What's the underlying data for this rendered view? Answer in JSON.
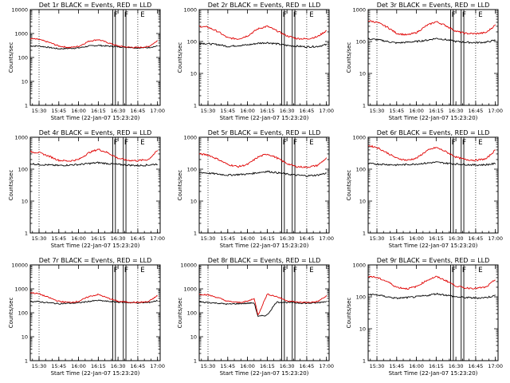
{
  "chart_data": [
    {
      "type": "line",
      "title": "Det 1r BLACK = Events, RED = LLD",
      "xlabel": "Start Time (22-Jan-07 15:23:20)",
      "ylabel": "Counts/sec",
      "ylog": true,
      "ylim": [
        1,
        10000
      ],
      "yticks": [
        "1",
        "10",
        "100",
        "1000",
        "10000"
      ],
      "xticks": [
        "15:30",
        "15:45",
        "16:00",
        "16:15",
        "16:30",
        "16:45",
        "17:00"
      ],
      "markers": {
        "dotted": [
          "15:30",
          "16:45"
        ],
        "solid": [
          "16:26",
          "16:28",
          "16:34",
          "16:36"
        ]
      },
      "flags": [
        "F",
        "F",
        "E"
      ],
      "series": [
        {
          "name": "Events",
          "color": "#000000",
          "x": [
            "15:23",
            "15:30",
            "15:38",
            "15:45",
            "15:53",
            "16:00",
            "16:08",
            "16:15",
            "16:22",
            "16:30",
            "16:37",
            "16:45",
            "16:53",
            "17:00"
          ],
          "y": [
            300,
            300,
            260,
            230,
            240,
            250,
            300,
            320,
            300,
            280,
            270,
            250,
            260,
            300
          ]
        },
        {
          "name": "LLD",
          "color": "#e00000",
          "x": [
            "15:23",
            "15:30",
            "15:38",
            "15:45",
            "15:53",
            "16:00",
            "16:08",
            "16:15",
            "16:22",
            "16:30",
            "16:37",
            "16:45",
            "16:53",
            "17:00"
          ],
          "y": [
            620,
            560,
            420,
            300,
            260,
            290,
            480,
            560,
            420,
            300,
            270,
            260,
            280,
            500
          ]
        }
      ]
    },
    {
      "type": "line",
      "title": "Det 2r BLACK = Events, RED = LLD",
      "xlabel": "Start Time (22-Jan-07 15:23:20)",
      "ylabel": "Counts/sec",
      "ylog": true,
      "ylim": [
        1,
        1000
      ],
      "yticks": [
        "1",
        "10",
        "100",
        "1000"
      ],
      "xticks": [
        "15:30",
        "15:45",
        "16:00",
        "16:15",
        "16:30",
        "16:45",
        "17:00"
      ],
      "markers": {
        "dotted": [
          "15:30",
          "16:45"
        ],
        "solid": [
          "16:26",
          "16:28",
          "16:34",
          "16:36"
        ]
      },
      "flags": [
        "F",
        "F",
        "E"
      ],
      "series": [
        {
          "name": "Events",
          "color": "#000000",
          "x": [
            "15:23",
            "15:30",
            "15:38",
            "15:45",
            "15:53",
            "16:00",
            "16:08",
            "16:15",
            "16:22",
            "16:30",
            "16:37",
            "16:45",
            "16:53",
            "17:00"
          ],
          "y": [
            90,
            85,
            80,
            70,
            75,
            78,
            88,
            92,
            85,
            75,
            72,
            68,
            70,
            80
          ]
        },
        {
          "name": "LLD",
          "color": "#e00000",
          "x": [
            "15:23",
            "15:30",
            "15:38",
            "15:45",
            "15:53",
            "16:00",
            "16:08",
            "16:15",
            "16:22",
            "16:30",
            "16:37",
            "16:45",
            "16:53",
            "17:00"
          ],
          "y": [
            300,
            280,
            200,
            130,
            120,
            150,
            250,
            300,
            220,
            150,
            125,
            120,
            140,
            220
          ]
        }
      ]
    },
    {
      "type": "line",
      "title": "Det 3r BLACK = Events, RED = LLD",
      "xlabel": "Start Time (22-Jan-07 15:23:20)",
      "ylabel": "Counts/sec",
      "ylog": true,
      "ylim": [
        1,
        1000
      ],
      "yticks": [
        "1",
        "10",
        "100",
        "1000"
      ],
      "xticks": [
        "15:30",
        "15:45",
        "16:00",
        "16:15",
        "16:30",
        "16:45",
        "17:00"
      ],
      "markers": {
        "dotted": [
          "15:30",
          "16:45"
        ],
        "solid": [
          "16:26",
          "16:28",
          "16:34",
          "16:36"
        ]
      },
      "flags": [
        "F",
        "F",
        "E"
      ],
      "series": [
        {
          "name": "Events",
          "color": "#000000",
          "x": [
            "15:23",
            "15:30",
            "15:38",
            "15:45",
            "15:53",
            "16:00",
            "16:08",
            "16:15",
            "16:22",
            "16:30",
            "16:37",
            "16:45",
            "16:53",
            "17:00"
          ],
          "y": [
            120,
            115,
            100,
            90,
            95,
            100,
            110,
            125,
            115,
            100,
            95,
            92,
            95,
            110
          ]
        },
        {
          "name": "LLD",
          "color": "#e00000",
          "x": [
            "15:23",
            "15:30",
            "15:38",
            "15:45",
            "15:53",
            "16:00",
            "16:08",
            "16:15",
            "16:22",
            "16:30",
            "16:37",
            "16:45",
            "16:53",
            "17:00"
          ],
          "y": [
            450,
            400,
            280,
            180,
            160,
            190,
            320,
            420,
            320,
            210,
            180,
            175,
            190,
            330
          ]
        }
      ]
    },
    {
      "type": "line",
      "title": "Det 4r BLACK = Events, RED = LLD",
      "xlabel": "Start Time (22-Jan-07 15:23:20)",
      "ylabel": "Counts/sec",
      "ylog": true,
      "ylim": [
        1,
        1000
      ],
      "yticks": [
        "1",
        "10",
        "100",
        "1000"
      ],
      "xticks": [
        "15:30",
        "15:45",
        "16:00",
        "16:15",
        "16:30",
        "16:45",
        "17:00"
      ],
      "markers": {
        "dotted": [
          "15:30",
          "16:45"
        ],
        "solid": [
          "16:26",
          "16:28",
          "16:34",
          "16:36"
        ]
      },
      "flags": [
        "F",
        "F",
        "E"
      ],
      "series": [
        {
          "name": "Events",
          "color": "#000000",
          "x": [
            "15:23",
            "15:30",
            "15:38",
            "15:45",
            "15:53",
            "16:00",
            "16:08",
            "16:15",
            "16:22",
            "16:30",
            "16:37",
            "16:45",
            "16:53",
            "17:00"
          ],
          "y": [
            150,
            140,
            135,
            130,
            135,
            140,
            150,
            160,
            150,
            140,
            135,
            130,
            135,
            145
          ]
        },
        {
          "name": "LLD",
          "color": "#e00000",
          "x": [
            "15:23",
            "15:30",
            "15:38",
            "15:45",
            "15:53",
            "16:00",
            "16:08",
            "16:15",
            "16:22",
            "16:30",
            "16:37",
            "16:45",
            "16:53",
            "17:00"
          ],
          "y": [
            350,
            330,
            250,
            190,
            180,
            200,
            330,
            420,
            330,
            220,
            190,
            185,
            200,
            380
          ]
        }
      ]
    },
    {
      "type": "line",
      "title": "Det 5r BLACK = Events, RED = LLD",
      "xlabel": "Start Time (22-Jan-07 15:23:20)",
      "ylabel": "Counts/sec",
      "ylog": true,
      "ylim": [
        1,
        1000
      ],
      "yticks": [
        "1",
        "10",
        "100",
        "1000"
      ],
      "xticks": [
        "15:30",
        "15:45",
        "16:00",
        "16:15",
        "16:30",
        "16:45",
        "17:00"
      ],
      "markers": {
        "dotted": [
          "15:30",
          "16:45"
        ],
        "solid": [
          "16:26",
          "16:28",
          "16:34",
          "16:36"
        ]
      },
      "flags": [
        "F",
        "F",
        "E"
      ],
      "series": [
        {
          "name": "Events",
          "color": "#000000",
          "x": [
            "15:23",
            "15:30",
            "15:38",
            "15:45",
            "15:53",
            "16:00",
            "16:08",
            "16:15",
            "16:22",
            "16:30",
            "16:37",
            "16:45",
            "16:53",
            "17:00"
          ],
          "y": [
            80,
            75,
            70,
            65,
            68,
            70,
            78,
            85,
            78,
            70,
            65,
            62,
            65,
            75
          ]
        },
        {
          "name": "LLD",
          "color": "#e00000",
          "x": [
            "15:23",
            "15:30",
            "15:38",
            "15:45",
            "15:53",
            "16:00",
            "16:08",
            "16:15",
            "16:22",
            "16:30",
            "16:37",
            "16:45",
            "16:53",
            "17:00"
          ],
          "y": [
            300,
            280,
            200,
            140,
            120,
            140,
            240,
            300,
            230,
            150,
            120,
            115,
            130,
            220
          ]
        }
      ]
    },
    {
      "type": "line",
      "title": "Det 6r BLACK = Events, RED = LLD",
      "xlabel": "Start Time (22-Jan-07 15:23:20)",
      "ylabel": "Counts/sec",
      "ylog": true,
      "ylim": [
        1,
        1000
      ],
      "yticks": [
        "1",
        "10",
        "100",
        "1000"
      ],
      "xticks": [
        "15:30",
        "15:45",
        "16:00",
        "16:15",
        "16:30",
        "16:45",
        "17:00"
      ],
      "markers": {
        "dotted": [
          "15:30",
          "16:45"
        ],
        "solid": [
          "16:26",
          "16:28",
          "16:34",
          "16:36"
        ]
      },
      "flags": [
        "F",
        "F",
        "E"
      ],
      "series": [
        {
          "name": "Events",
          "color": "#000000",
          "x": [
            "15:23",
            "15:30",
            "15:38",
            "15:45",
            "15:53",
            "16:00",
            "16:08",
            "16:15",
            "16:22",
            "16:30",
            "16:37",
            "16:45",
            "16:53",
            "17:00"
          ],
          "y": [
            150,
            145,
            140,
            135,
            140,
            145,
            155,
            165,
            155,
            145,
            140,
            135,
            138,
            150
          ]
        },
        {
          "name": "LLD",
          "color": "#e00000",
          "x": [
            "15:23",
            "15:30",
            "15:38",
            "15:45",
            "15:53",
            "16:00",
            "16:08",
            "16:15",
            "16:22",
            "16:30",
            "16:37",
            "16:45",
            "16:53",
            "17:00"
          ],
          "y": [
            550,
            480,
            320,
            220,
            190,
            220,
            380,
            480,
            360,
            240,
            200,
            190,
            210,
            400
          ]
        }
      ]
    },
    {
      "type": "line",
      "title": "Det 7r BLACK = Events, RED = LLD",
      "xlabel": "Start Time (22-Jan-07 15:23:20)",
      "ylabel": "Counts/sec",
      "ylog": true,
      "ylim": [
        1,
        10000
      ],
      "yticks": [
        "1",
        "10",
        "100",
        "1000",
        "10000"
      ],
      "xticks": [
        "15:30",
        "15:45",
        "16:00",
        "16:15",
        "16:30",
        "16:45",
        "17:00"
      ],
      "markers": {
        "dotted": [
          "15:30",
          "16:45"
        ],
        "solid": [
          "16:26",
          "16:28",
          "16:34",
          "16:36"
        ]
      },
      "flags": [
        "F",
        "F",
        "E"
      ],
      "series": [
        {
          "name": "Events",
          "color": "#000000",
          "x": [
            "15:23",
            "15:30",
            "15:38",
            "15:45",
            "15:53",
            "16:00",
            "16:08",
            "16:15",
            "16:22",
            "16:30",
            "16:37",
            "16:45",
            "16:53",
            "17:00"
          ],
          "y": [
            300,
            290,
            260,
            240,
            250,
            260,
            300,
            330,
            300,
            280,
            270,
            260,
            270,
            320
          ]
        },
        {
          "name": "LLD",
          "color": "#e00000",
          "x": [
            "15:23",
            "15:30",
            "15:38",
            "15:45",
            "15:53",
            "16:00",
            "16:08",
            "16:15",
            "16:22",
            "16:30",
            "16:37",
            "16:45",
            "16:53",
            "17:00"
          ],
          "y": [
            700,
            620,
            420,
            300,
            270,
            300,
            480,
            580,
            420,
            300,
            280,
            270,
            290,
            520
          ]
        }
      ]
    },
    {
      "type": "line",
      "title": "Det 8r BLACK = Events, RED = LLD",
      "xlabel": "Start Time (22-Jan-07 15:23:20)",
      "ylabel": "Counts/sec",
      "ylog": true,
      "ylim": [
        1,
        10000
      ],
      "yticks": [
        "1",
        "10",
        "100",
        "1000",
        "10000"
      ],
      "xticks": [
        "15:30",
        "15:45",
        "16:00",
        "16:15",
        "16:30",
        "16:45",
        "17:00"
      ],
      "markers": {
        "dotted": [
          "15:30",
          "16:45"
        ],
        "solid": [
          "16:26",
          "16:28",
          "16:34",
          "16:36"
        ]
      },
      "flags": [
        "F",
        "F",
        "E"
      ],
      "series": [
        {
          "name": "Events",
          "color": "#000000",
          "x": [
            "15:23",
            "15:30",
            "15:38",
            "15:45",
            "15:53",
            "16:00",
            "16:05",
            "16:08",
            "16:15",
            "16:22",
            "16:30",
            "16:37",
            "16:45",
            "16:53",
            "17:00"
          ],
          "y": [
            280,
            270,
            250,
            230,
            240,
            250,
            260,
            70,
            80,
            280,
            270,
            260,
            250,
            260,
            300
          ]
        },
        {
          "name": "LLD",
          "color": "#e00000",
          "x": [
            "15:23",
            "15:30",
            "15:38",
            "15:45",
            "15:53",
            "16:00",
            "16:05",
            "16:08",
            "16:15",
            "16:22",
            "16:30",
            "16:37",
            "16:45",
            "16:53",
            "17:00"
          ],
          "y": [
            600,
            560,
            420,
            300,
            270,
            300,
            400,
            80,
            600,
            480,
            320,
            280,
            270,
            290,
            500
          ]
        }
      ]
    },
    {
      "type": "line",
      "title": "Det 9r BLACK = Events, RED = LLD",
      "xlabel": "Start Time (22-Jan-07 15:23:20)",
      "ylabel": "Counts/sec",
      "ylog": true,
      "ylim": [
        1,
        1000
      ],
      "yticks": [
        "1",
        "10",
        "100",
        "1000"
      ],
      "xticks": [
        "15:30",
        "15:45",
        "16:00",
        "16:15",
        "16:30",
        "16:45",
        "17:00"
      ],
      "markers": {
        "dotted": [
          "15:30",
          "16:45"
        ],
        "solid": [
          "16:26",
          "16:28",
          "16:34",
          "16:36"
        ]
      },
      "flags": [
        "F",
        "F",
        "E"
      ],
      "series": [
        {
          "name": "Events",
          "color": "#000000",
          "x": [
            "15:23",
            "15:30",
            "15:38",
            "15:45",
            "15:53",
            "16:00",
            "16:08",
            "16:15",
            "16:22",
            "16:30",
            "16:37",
            "16:45",
            "16:53",
            "17:00"
          ],
          "y": [
            120,
            115,
            100,
            90,
            95,
            100,
            110,
            125,
            115,
            100,
            95,
            92,
            95,
            110
          ]
        },
        {
          "name": "LLD",
          "color": "#e00000",
          "x": [
            "15:23",
            "15:30",
            "15:38",
            "15:45",
            "15:53",
            "16:00",
            "16:08",
            "16:15",
            "16:22",
            "16:30",
            "16:37",
            "16:45",
            "16:53",
            "17:00"
          ],
          "y": [
            450,
            400,
            300,
            200,
            180,
            210,
            330,
            430,
            330,
            220,
            190,
            185,
            200,
            350
          ]
        }
      ]
    }
  ]
}
